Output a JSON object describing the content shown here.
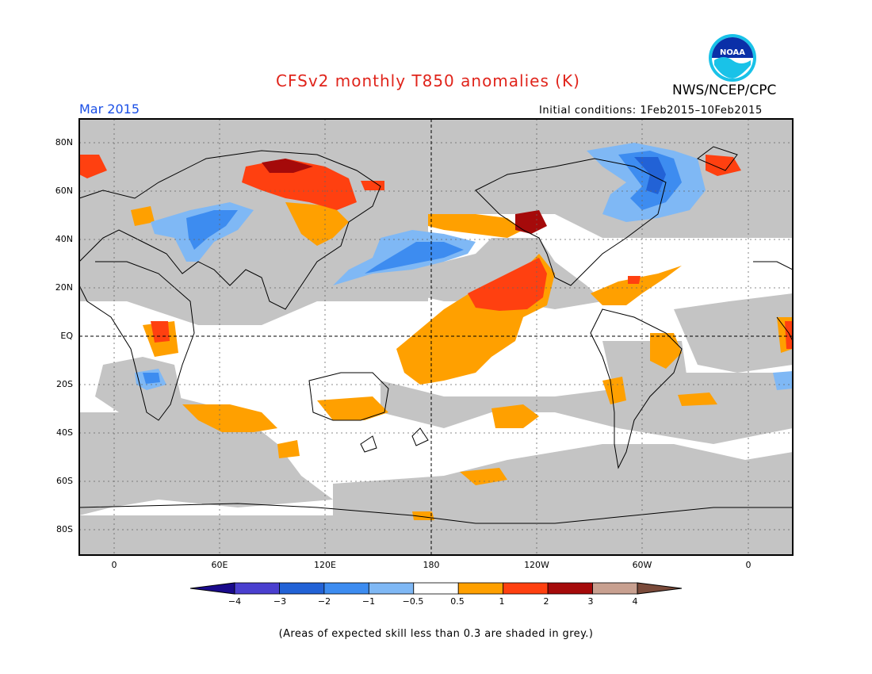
{
  "header": {
    "title": "CFSv2 monthly T850 anomalies (K)",
    "month": "Mar 2015",
    "initial_conditions": "Initial conditions: 1Feb2015–10Feb2015",
    "agency": "NWS/NCEP/CPC",
    "logo_text": "NOAA"
  },
  "map": {
    "lat_labels": [
      "80N",
      "60N",
      "40N",
      "20N",
      "EQ",
      "20S",
      "40S",
      "60S",
      "80S"
    ],
    "lon_labels": [
      "0",
      "60E",
      "120E",
      "180",
      "120W",
      "60W",
      "0"
    ],
    "grey_meaning": "low skill",
    "colors": {
      "grey": "#c4c4c4",
      "land_outline": "#000000",
      "ocean_neutral": "#ffffff"
    }
  },
  "colorbar": {
    "tick_labels": [
      "−4",
      "−3",
      "−2",
      "−1",
      "−0.5",
      "0.5",
      "1",
      "2",
      "3",
      "4"
    ],
    "colors": [
      "#1a0a8c",
      "#4a3fcf",
      "#2262d6",
      "#3d8cf0",
      "#7fb8f5",
      "#ffffff",
      "#ffa000",
      "#ff4010",
      "#a50a0a",
      "#c8a090",
      "#7a4a3a"
    ]
  },
  "footnote": "(Areas of expected skill less than 0.3 are shaded in grey.)"
}
